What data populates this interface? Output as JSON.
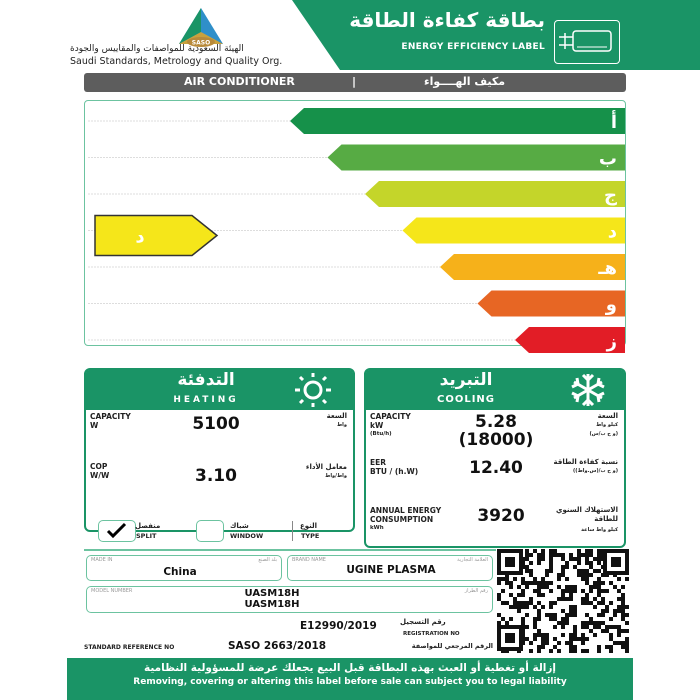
{
  "header": {
    "logo_text": "SASO",
    "org_ar": "الهيئة السعودية للمواصفات والمقاييس والجودة",
    "org_en": "Saudi Standards, Metrology and Quality Org.",
    "title_ar": "بطاقة كفاءة الطاقة",
    "title_en": "ENERGY EFFICIENCY LABEL",
    "icon": "air-conditioner-plug-icon"
  },
  "product": {
    "en": "AIR CONDITIONER",
    "separator": "|",
    "ar": "مكيف الهــــواء"
  },
  "scale": {
    "classes": [
      {
        "label": "أ",
        "color": "#16914a"
      },
      {
        "label": "ب",
        "color": "#57ab44"
      },
      {
        "label": "ج",
        "color": "#c4d52a"
      },
      {
        "label": "د",
        "color": "#f5e61a"
      },
      {
        "label": "هـ",
        "color": "#f6b11a"
      },
      {
        "label": "و",
        "color": "#e76624"
      },
      {
        "label": "ز",
        "color": "#e21d26"
      }
    ],
    "rating": "د",
    "rating_index": 3,
    "rating_color": "#f5e61a"
  },
  "heating": {
    "title_ar": "التدفئة",
    "title_en": "HEATING",
    "icon": "sun-icon",
    "capacity_label": "CAPACITY",
    "capacity_unit": "W",
    "capacity_ar": "السعة",
    "capacity_unit_ar": "واط",
    "capacity": "5100",
    "cop_label": "COP",
    "cop_unit": "W/W",
    "cop_ar": "معامل الأداء",
    "cop_unit_ar": "واط/واط",
    "cop": "3.10"
  },
  "cooling": {
    "title_ar": "التبريد",
    "title_en": "COOLING",
    "icon": "snowflake-icon",
    "capacity_label": "CAPACITY",
    "capacity_unit": "kW",
    "capacity_unit2": "(Btu/h)",
    "capacity_ar": "السعة",
    "capacity_unit_ar": "كيلو واط",
    "capacity_unit2_ar": "(و ح ب/س)",
    "capacity": "5.28",
    "capacity_btu": "(18000)",
    "eer_label": "EER",
    "eer_unit": "BTU / (h.W)",
    "eer_ar": "نسبة كفاءة الطاقة",
    "eer_unit_ar": "(و ح ب/(س.واط))",
    "eer": "12.40",
    "annual_label": "ANNUAL ENERGY CONSUMPTION",
    "annual_unit": "kWh",
    "annual_ar": "الاستهلاك السنوي للطاقة",
    "annual_unit_ar": "كيلو واط ساعة",
    "annual": "3920"
  },
  "type": {
    "split_ar": "منفصل",
    "split_en": "SPLIT",
    "split_checked": true,
    "window_ar": "شباك",
    "window_en": "WINDOW",
    "window_checked": false,
    "type_ar": "النوع",
    "type_en": "TYPE"
  },
  "info": {
    "made_in_label": "MADE IN",
    "made_in_ar": "بلد الصنع",
    "made_in": "China",
    "brand_label": "BRAND NAME",
    "brand_ar": "العلامة التجارية",
    "brand": "UGINE PLASMA",
    "model_label": "MODEL NUMBER",
    "model_ar": "رقم الطراز",
    "model_1": "UASM18H",
    "model_2": "UASM18H",
    "registration": "E12990/2019",
    "registration_ar": "رقم التسجيل",
    "registration_en": "REGISTRATION NO",
    "standard_label": "STANDARD REFERENCE NO",
    "standard": "SASO 2663/2018",
    "standard_ar": "الرقم المرجعي للمواصفة"
  },
  "footer": {
    "ar": "إزالة أو تغطية أو العبث بهذه البطاقة قبل البيع يجعلك عرضة للمسؤولية النظامية",
    "en": "Removing, covering or altering this label before sale can subject you to legal liability"
  },
  "colors": {
    "brand_green": "#1a9466",
    "gray_bar": "#5d5d5d"
  }
}
